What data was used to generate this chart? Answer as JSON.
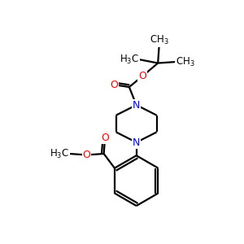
{
  "background_color": "#ffffff",
  "atom_colors": {
    "N": "#0000ff",
    "O": "#ff0000",
    "C": "#000000"
  },
  "bond_color": "#000000",
  "bond_width": 1.6,
  "figsize": [
    3.0,
    3.0
  ],
  "dpi": 100,
  "xlim": [
    0,
    10
  ],
  "ylim": [
    0,
    10
  ],
  "font_size_label": 8.5,
  "font_size_subscript": 7
}
